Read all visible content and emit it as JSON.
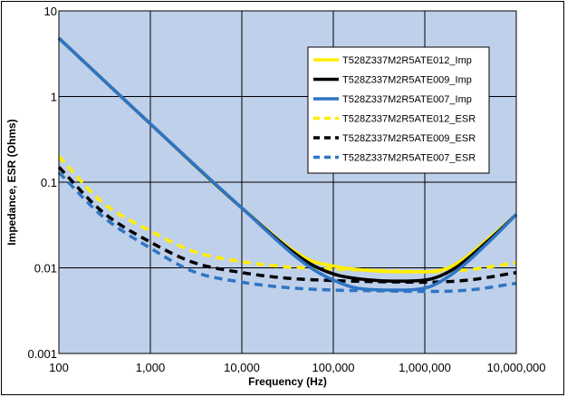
{
  "chart_data": {
    "type": "line",
    "title": "",
    "xlabel": "Frequency (Hz)",
    "ylabel": "Impedance, ESR (Ohms)",
    "x_scale": "log",
    "y_scale": "log",
    "xlim": [
      100,
      10000000
    ],
    "ylim": [
      0.001,
      10
    ],
    "x_ticks": [
      100,
      1000,
      10000,
      100000,
      1000000,
      10000000
    ],
    "x_tick_labels": [
      "100",
      "1,000",
      "10,000",
      "100,000",
      "1,000,000",
      "10,000,000"
    ],
    "y_ticks": [
      10,
      1,
      0.1,
      0.01,
      0.001
    ],
    "y_tick_labels": [
      "10",
      "1",
      "0.1",
      "0.01",
      "0.001"
    ],
    "grid": true,
    "plot_background": "#bfd0ea",
    "legend_position": "top-right",
    "series": [
      {
        "name": "T528Z337M2R5ATE012_Imp",
        "color": "#ffee00",
        "dash": "solid",
        "x": [
          100,
          1000,
          10000,
          50000,
          100000,
          200000,
          500000,
          1000000,
          2000000,
          5000000,
          10000000
        ],
        "y": [
          4.8,
          0.48,
          0.05,
          0.013,
          0.0105,
          0.0095,
          0.009,
          0.009,
          0.0105,
          0.022,
          0.042
        ]
      },
      {
        "name": "T528Z337M2R5ATE009_Imp",
        "color": "#000000",
        "dash": "solid",
        "x": [
          100,
          1000,
          10000,
          50000,
          100000,
          200000,
          500000,
          1000000,
          2000000,
          5000000,
          10000000
        ],
        "y": [
          4.8,
          0.48,
          0.05,
          0.012,
          0.0085,
          0.0074,
          0.007,
          0.0072,
          0.0095,
          0.021,
          0.042
        ]
      },
      {
        "name": "T528Z337M2R5ATE007_Imp",
        "color": "#2e75c4",
        "dash": "solid",
        "x": [
          100,
          1000,
          10000,
          50000,
          100000,
          200000,
          500000,
          1000000,
          2000000,
          5000000,
          10000000
        ],
        "y": [
          4.8,
          0.48,
          0.05,
          0.011,
          0.0072,
          0.0057,
          0.0055,
          0.0058,
          0.0085,
          0.02,
          0.042
        ]
      },
      {
        "name": "T528Z337M2R5ATE012_ESR",
        "color": "#ffee00",
        "dash": "dashed",
        "x": [
          100,
          300,
          1000,
          3000,
          10000,
          30000,
          100000,
          300000,
          1000000,
          3000000,
          10000000
        ],
        "y": [
          0.2,
          0.058,
          0.027,
          0.0155,
          0.0118,
          0.0103,
          0.0097,
          0.0093,
          0.009,
          0.0095,
          0.0115
        ]
      },
      {
        "name": "T528Z337M2R5ATE009_ESR",
        "color": "#000000",
        "dash": "dashed",
        "x": [
          100,
          300,
          1000,
          3000,
          10000,
          30000,
          100000,
          300000,
          1000000,
          3000000,
          10000000
        ],
        "y": [
          0.15,
          0.045,
          0.02,
          0.0115,
          0.0088,
          0.0076,
          0.0071,
          0.0069,
          0.0068,
          0.0072,
          0.0088
        ]
      },
      {
        "name": "T528Z337M2R5ATE007_ESR",
        "color": "#2e75c4",
        "dash": "dashed",
        "x": [
          100,
          300,
          1000,
          3000,
          10000,
          30000,
          100000,
          300000,
          1000000,
          3000000,
          10000000
        ],
        "y": [
          0.13,
          0.04,
          0.017,
          0.009,
          0.0068,
          0.0059,
          0.0055,
          0.0054,
          0.0053,
          0.0055,
          0.0066
        ]
      }
    ]
  }
}
